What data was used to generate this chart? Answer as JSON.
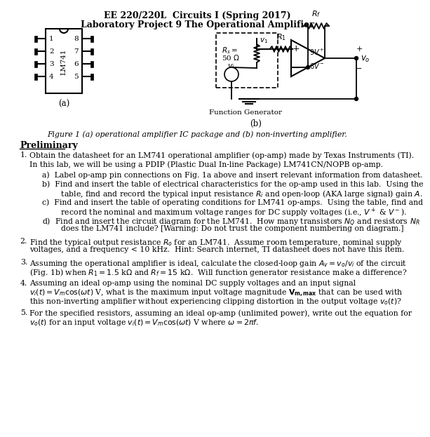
{
  "title1": "EE 220/220L  Circuits I (Spring 2017)",
  "title2": "Laboratory Project 9 The Operational Amplifier",
  "fig_caption": "Figure 1 (a) operational amplifier IC package and (b) non-inverting amplifier.",
  "prelim_header": "Preliminary",
  "item1_main": "Obtain the datasheet for an LM741 operational amplifier (op-amp) made by Texas Instruments (TI).\nIn this lab, we will be using a PDIP (Plastic Dual In-line Package) LM741CN/NOPB op-amp.",
  "item1a": "a)  Label op-amp pin connections on Fig. 1a above and insert relevant information from datasheet.",
  "item1b_1": "b)  Find and insert the table of electrical characteristics for the op-amp used in this lab.  Using the",
  "item1b_2": "      table, find and record the typical input resistance $R_i$ and open-loop (AKA large signal) gain $A$.",
  "item1c_1": "c)  Find and insert the table of operating conditions for LM741 op-amps.  Using the table, find and",
  "item1c_2": "      record the nominal and maximum voltage ranges for DC supply voltages (i.e., $V^+$ & $V^-$).",
  "item1d_1": "d)  Find and insert the circuit diagram for the LM741.  How many transistors $N_Q$ and resistors $N_R$",
  "item1d_2": "      does the LM741 include? [Warning: Do not trust the component numbering on diagram.]",
  "item2_1": "Find the typical output resistance $R_o$ for an LM741.  Assume room temperature, nominal supply",
  "item2_2": "voltages, and a frequency < 10 kHz.  Hint: Search internet, TI datasheet does not have this item.",
  "item3_1": "Assuming the operational amplifier is ideal, calculate the closed-loop gain $A_v = v_o / v_i$ of the circuit",
  "item3_2": "(Fig. 1b) when $R_1 = 1.5$ k$\\Omega$ and $R_f = 15$ k$\\Omega$.  Will function generator resistance make a difference?",
  "item4_1": "Assuming an ideal op-amp using the nominal DC supply voltages and an input signal",
  "item4_2": "$v_i(t) = V_m \\cos(\\omega t)$ V, what is the maximum input voltage magnitude $\\mathbf{V_{m,max}}$ that can be used with",
  "item4_3": "this non-inverting amplifier without experiencing clipping distortion in the output voltage $v_o(t)$?",
  "item5_1": "For the specified resistors, assuming an ideal op-amp (unlimited power), write out the equation for",
  "item5_2": "$v_o(t)$ for an input voltage $v_i(t) = V_m \\cos(\\omega t)$ V where $\\omega = 2\\pi f$."
}
